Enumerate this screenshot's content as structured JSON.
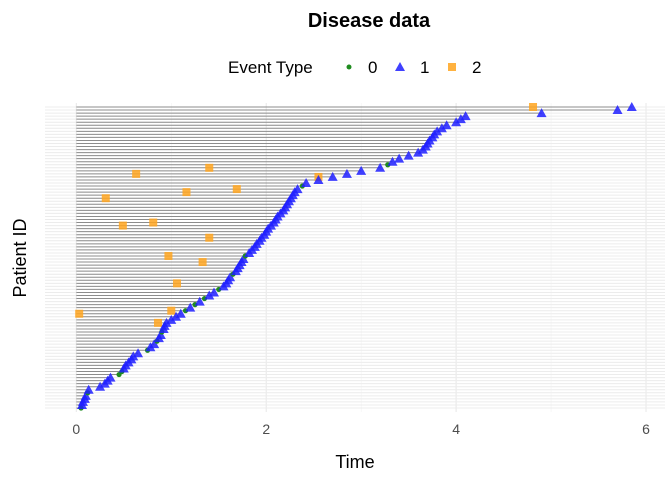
{
  "chart_data": {
    "type": "scatter",
    "title": "Disease data",
    "xlabel": "Time",
    "ylabel": "Patient ID",
    "xlim": [
      -0.33,
      6.2
    ],
    "xticks": [
      "0",
      "2",
      "4",
      "6"
    ],
    "grid": true,
    "legend": {
      "title": "Event Type",
      "placement": "top",
      "entries": [
        {
          "label": "0",
          "shape": "circle",
          "color": "#1f8c1f"
        },
        {
          "label": "1",
          "shape": "triangle",
          "color": "#1f1fff"
        },
        {
          "label": "2",
          "shape": "square",
          "color": "#ffa41f"
        }
      ]
    },
    "line_color": "#8c8c8c",
    "patients": {
      "end_time": [
        0.05,
        0.06,
        0.07,
        0.09,
        0.1,
        0.12,
        0.13,
        0.25,
        0.3,
        0.33,
        0.36,
        0.45,
        0.48,
        0.5,
        0.52,
        0.55,
        0.58,
        0.6,
        0.65,
        0.75,
        0.78,
        0.82,
        0.85,
        0.87,
        0.89,
        0.9,
        0.92,
        0.93,
        0.95,
        1.0,
        1.05,
        1.1,
        1.15,
        1.2,
        1.25,
        1.3,
        1.35,
        1.4,
        1.45,
        1.5,
        1.55,
        1.58,
        1.6,
        1.62,
        1.65,
        1.68,
        1.7,
        1.72,
        1.74,
        1.76,
        1.78,
        1.82,
        1.85,
        1.88,
        1.9,
        1.93,
        1.95,
        1.98,
        2.0,
        2.02,
        2.05,
        2.08,
        2.1,
        2.12,
        2.15,
        2.18,
        2.2,
        2.22,
        2.24,
        2.26,
        2.28,
        2.3,
        2.33,
        2.38,
        2.42,
        2.55,
        2.7,
        2.85,
        3.0,
        3.2,
        3.28,
        3.33,
        3.4,
        3.5,
        3.6,
        3.65,
        3.68,
        3.7,
        3.72,
        3.75,
        3.77,
        3.8,
        3.85,
        3.9,
        4.0,
        4.05,
        4.1,
        4.9,
        5.7,
        5.85
      ],
      "end_event_type": [
        0,
        1,
        1,
        1,
        1,
        0,
        1,
        1,
        1,
        1,
        1,
        0,
        0,
        1,
        1,
        1,
        1,
        1,
        1,
        0,
        1,
        1,
        0,
        1,
        1,
        0,
        1,
        1,
        1,
        1,
        1,
        1,
        0,
        1,
        0,
        1,
        0,
        1,
        1,
        0,
        1,
        1,
        1,
        1,
        0,
        1,
        1,
        1,
        1,
        1,
        0,
        1,
        1,
        1,
        1,
        1,
        1,
        1,
        1,
        1,
        1,
        1,
        1,
        1,
        1,
        1,
        1,
        1,
        1,
        1,
        1,
        1,
        1,
        0,
        1,
        1,
        1,
        1,
        1,
        1,
        0,
        1,
        1,
        1,
        1,
        1,
        1,
        1,
        1,
        1,
        1,
        1,
        1,
        1,
        1,
        1,
        1,
        1,
        1,
        1
      ]
    },
    "type2_events": [
      {
        "patient": 100,
        "time": 4.81
      },
      {
        "patient": 70,
        "time": 0.31
      },
      {
        "patient": 78,
        "time": 0.63
      },
      {
        "patient": 80,
        "time": 1.4
      },
      {
        "patient": 72,
        "time": 1.16
      },
      {
        "patient": 73,
        "time": 1.69
      },
      {
        "patient": 61,
        "time": 0.49
      },
      {
        "patient": 62,
        "time": 0.81
      },
      {
        "patient": 57,
        "time": 1.4
      },
      {
        "patient": 51,
        "time": 0.97
      },
      {
        "patient": 49,
        "time": 1.33
      },
      {
        "patient": 42,
        "time": 1.06
      },
      {
        "patient": 32,
        "time": 0.03
      },
      {
        "patient": 29,
        "time": 0.86
      },
      {
        "patient": 33,
        "time": 1.0
      },
      {
        "patient": 77,
        "time": 2.55
      }
    ]
  }
}
